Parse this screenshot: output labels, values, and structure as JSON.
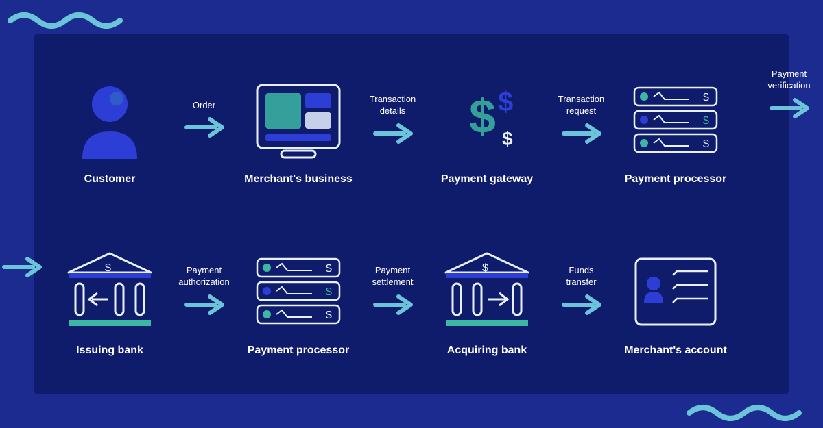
{
  "type": "flowchart",
  "background_color": "#1b2b8f",
  "panel_color": "#0f1c6b",
  "arrow_color": "#6bc4d9",
  "accent_wave_color": "#6bc4d9",
  "text_color": "#ffffff",
  "accent_teal": "#3cb7a3",
  "accent_blue": "#2d3ed6",
  "stroke_white": "#e8f0ff",
  "row1": {
    "nodes": [
      {
        "label": "Customer",
        "icon": "customer"
      },
      {
        "label": "Merchant's business",
        "icon": "merchant-business"
      },
      {
        "label": "Payment gateway",
        "icon": "payment-gateway"
      },
      {
        "label": "Payment processor",
        "icon": "payment-processor"
      }
    ],
    "arrows": [
      {
        "label": "Order"
      },
      {
        "label": "Transaction\ndetails"
      },
      {
        "label": "Transaction\nrequest"
      }
    ],
    "exit_arrow": {
      "label": "Payment\nverification"
    }
  },
  "row2": {
    "entry_arrow": true,
    "nodes": [
      {
        "label": "Issuing bank",
        "icon": "issuing-bank"
      },
      {
        "label": "Payment processor",
        "icon": "payment-processor"
      },
      {
        "label": "Acquiring bank",
        "icon": "acquiring-bank"
      },
      {
        "label": "Merchant's account",
        "icon": "merchant-account"
      }
    ],
    "arrows": [
      {
        "label": "Payment\nauthorization"
      },
      {
        "label": "Payment\nsettlement"
      },
      {
        "label": "Funds\ntransfer"
      }
    ]
  }
}
